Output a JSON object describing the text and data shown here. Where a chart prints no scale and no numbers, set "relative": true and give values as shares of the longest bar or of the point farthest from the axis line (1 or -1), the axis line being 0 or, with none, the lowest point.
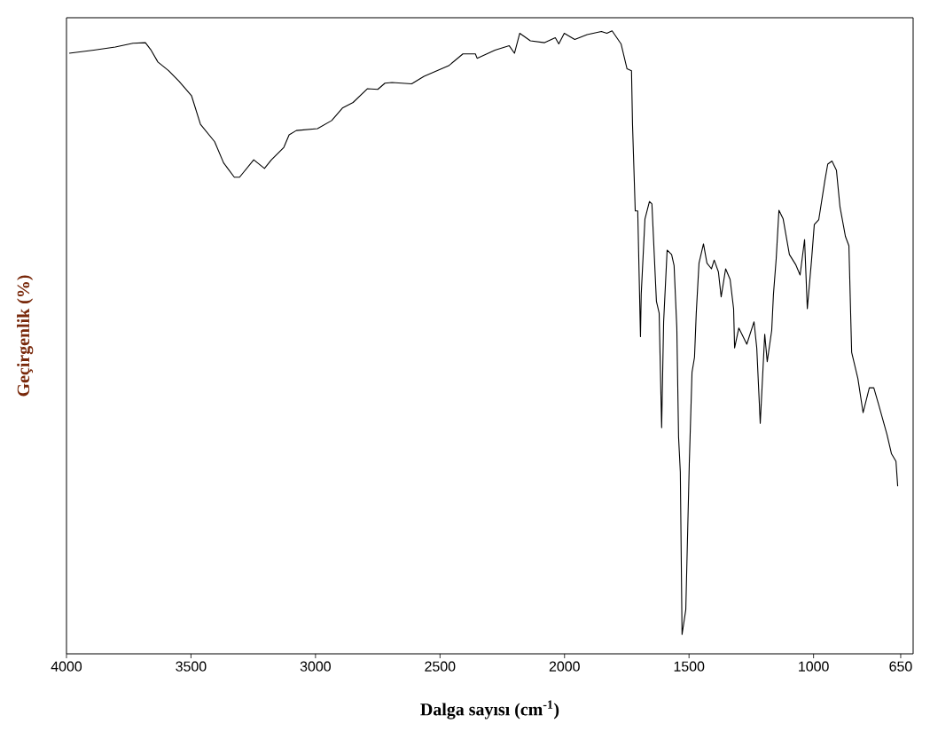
{
  "chart_data": {
    "type": "line",
    "xlabel": "Dalga sayısı (cm$^{-1}$)",
    "ylabel": "Geçirgenlik (%)",
    "relative": true,
    "xlim": [
      4000,
      600
    ],
    "xticks": [
      4000,
      3500,
      3000,
      2500,
      2000,
      1500,
      1000,
      650
    ],
    "x": [
      3989,
      3890,
      3804,
      3733,
      3683,
      3662,
      3633,
      3590,
      3548,
      3498,
      3462,
      3405,
      3369,
      3326,
      3305,
      3248,
      3205,
      3177,
      3127,
      3106,
      3077,
      2992,
      2935,
      2892,
      2849,
      2792,
      2750,
      2721,
      2693,
      2614,
      2564,
      2465,
      2408,
      2358,
      2351,
      2279,
      2222,
      2201,
      2180,
      2137,
      2080,
      2037,
      2023,
      2001,
      1959,
      1909,
      1852,
      1830,
      1809,
      1773,
      1749,
      1731,
      1727,
      1716,
      1706,
      1695,
      1692,
      1677,
      1659,
      1649,
      1642,
      1631,
      1620,
      1610,
      1602,
      1588,
      1570,
      1560,
      1549,
      1542,
      1535,
      1528,
      1513,
      1499,
      1488,
      1478,
      1471,
      1460,
      1442,
      1428,
      1410,
      1399,
      1382,
      1371,
      1353,
      1335,
      1321,
      1317,
      1300,
      1268,
      1239,
      1228,
      1214,
      1196,
      1186,
      1168,
      1161,
      1150,
      1139,
      1122,
      1097,
      1072,
      1054,
      1036,
      1025,
      1008,
      997,
      979,
      954,
      943,
      926,
      908,
      894,
      872,
      858,
      847,
      822,
      801,
      776,
      758,
      740,
      705,
      687,
      669,
      662
    ],
    "series": [
      {
        "color": "#000000",
        "values": [
          0.964,
          0.969,
          0.974,
          0.98,
          0.981,
          0.97,
          0.95,
          0.936,
          0.919,
          0.896,
          0.85,
          0.822,
          0.788,
          0.765,
          0.765,
          0.793,
          0.779,
          0.793,
          0.813,
          0.833,
          0.84,
          0.843,
          0.856,
          0.876,
          0.885,
          0.907,
          0.906,
          0.916,
          0.917,
          0.915,
          0.927,
          0.944,
          0.963,
          0.963,
          0.956,
          0.969,
          0.976,
          0.964,
          0.996,
          0.984,
          0.981,
          0.989,
          0.979,
          0.996,
          0.986,
          0.994,
          0.999,
          0.996,
          1.0,
          0.979,
          0.939,
          0.936,
          0.85,
          0.711,
          0.711,
          0.509,
          0.577,
          0.698,
          0.726,
          0.722,
          0.661,
          0.566,
          0.547,
          0.363,
          0.533,
          0.648,
          0.641,
          0.623,
          0.523,
          0.348,
          0.292,
          0.031,
          0.071,
          0.305,
          0.452,
          0.476,
          0.547,
          0.627,
          0.658,
          0.627,
          0.618,
          0.632,
          0.613,
          0.573,
          0.618,
          0.601,
          0.554,
          0.491,
          0.523,
          0.497,
          0.533,
          0.491,
          0.37,
          0.513,
          0.469,
          0.519,
          0.577,
          0.634,
          0.712,
          0.698,
          0.641,
          0.625,
          0.608,
          0.665,
          0.554,
          0.632,
          0.689,
          0.697,
          0.761,
          0.786,
          0.791,
          0.776,
          0.718,
          0.67,
          0.655,
          0.484,
          0.442,
          0.387,
          0.427,
          0.427,
          0.402,
          0.352,
          0.321,
          0.309,
          0.269
        ]
      }
    ]
  }
}
